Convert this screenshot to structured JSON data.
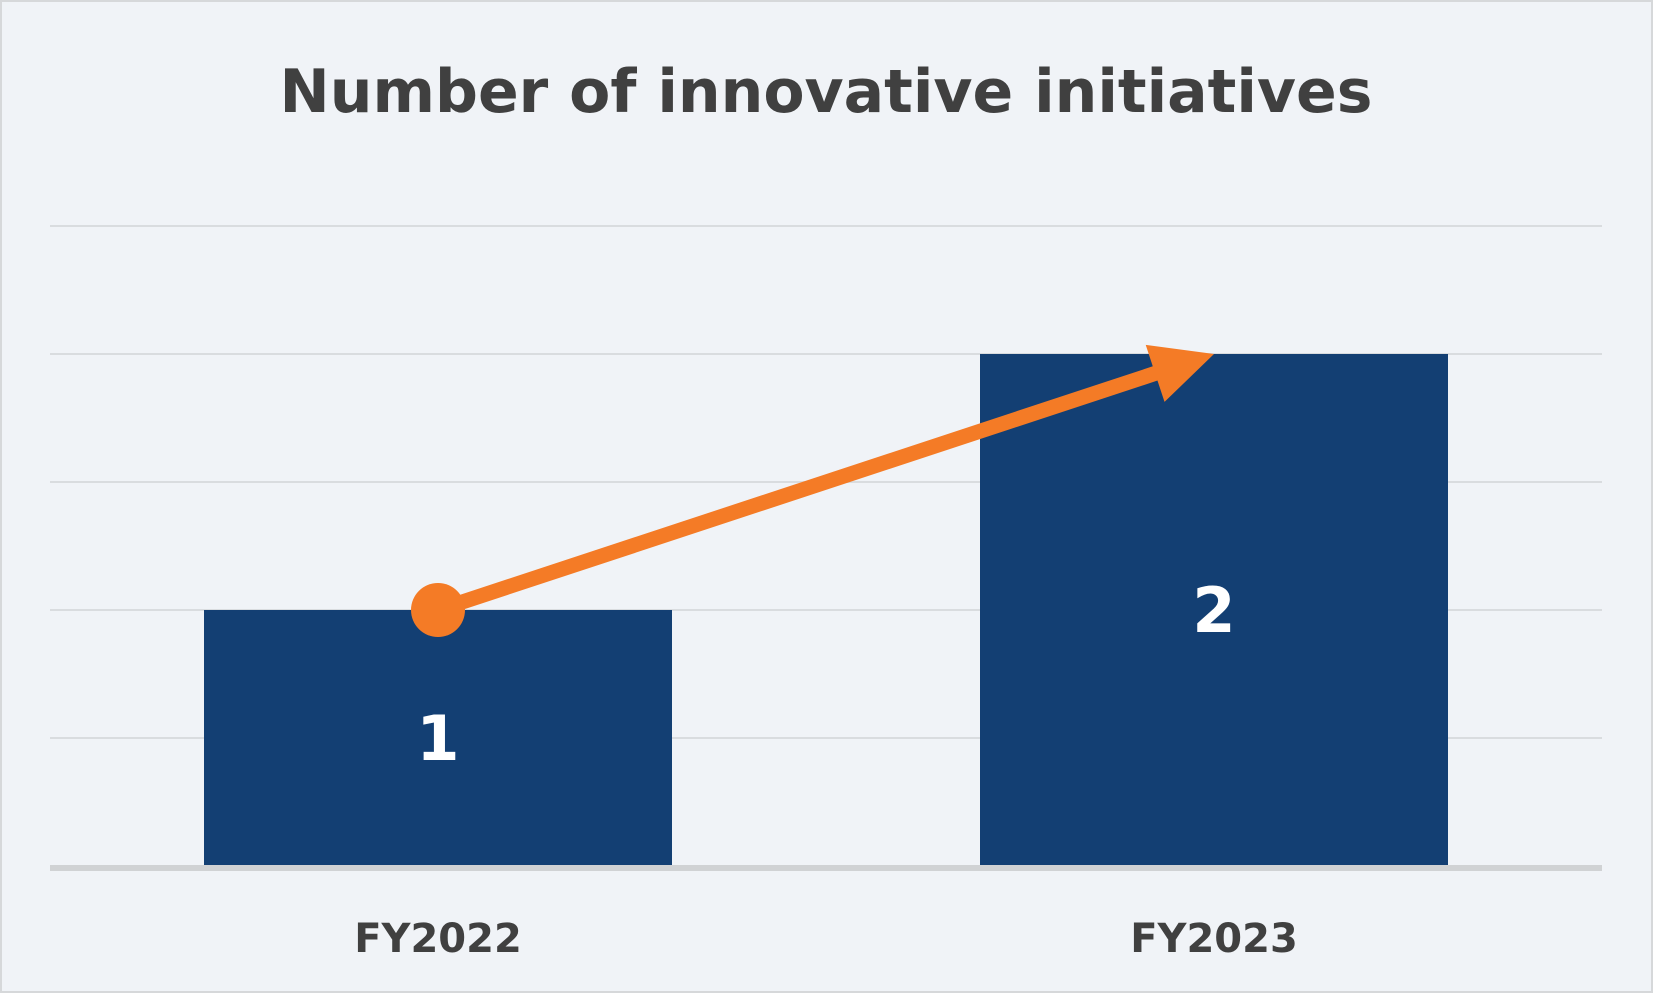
{
  "chart_data": {
    "type": "bar",
    "title": "Number of innovative initiatives",
    "categories": [
      "FY2022",
      "FY2023"
    ],
    "values": [
      1,
      2
    ],
    "data_labels": [
      "1",
      "2"
    ],
    "xlabel": "",
    "ylabel": "",
    "ylim": [
      0,
      2.5
    ],
    "grid": true,
    "legend": "none",
    "bar_color": "#133f73",
    "annotation": {
      "type": "trend-arrow",
      "from_category": "FY2022",
      "to_category": "FY2023",
      "color": "#f47b26"
    }
  },
  "colors": {
    "background": "#f0f3f7",
    "gridline": "#d9dcdf",
    "axis": "#d0d2d4",
    "text": "#404040"
  }
}
